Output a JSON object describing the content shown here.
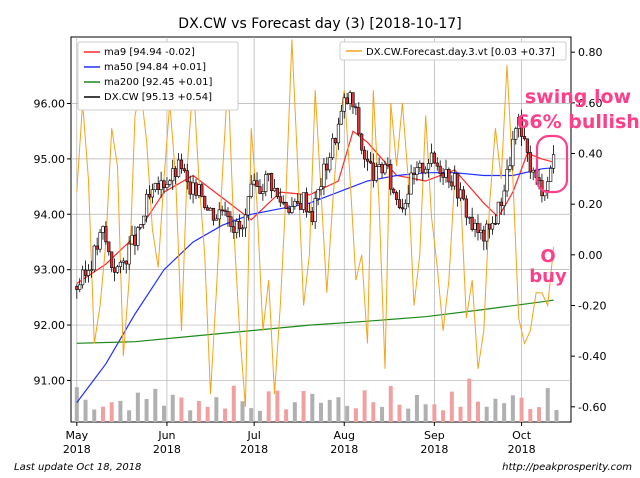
{
  "chart_data": {
    "type": "candlestick",
    "title": "DX.CW vs Forecast day (3)  [2018-10-17]",
    "footer_left": "Last update Oct 18, 2018",
    "footer_right": "http://peakprosperity.com",
    "grid": true,
    "y_left": {
      "range": [
        90.25,
        97.2
      ],
      "ticks": [
        91.0,
        92.0,
        93.0,
        94.0,
        95.0,
        96.0
      ],
      "tick_labels": [
        "91.00",
        "92.00",
        "93.00",
        "94.00",
        "95.00",
        "96.00"
      ]
    },
    "y_right": {
      "range": [
        -0.66,
        0.86
      ],
      "ticks": [
        -0.6,
        -0.4,
        -0.2,
        0.0,
        0.2,
        0.4,
        0.6,
        0.8
      ],
      "tick_labels": [
        "-0.60",
        "-0.40",
        "-0.20",
        "0.00",
        "0.20",
        "0.40",
        "0.60",
        "0.80"
      ]
    },
    "x_ticks": [
      {
        "month": "May",
        "year": "2018",
        "day": 0
      },
      {
        "month": "Jun",
        "year": "2018",
        "day": 31
      },
      {
        "month": "Jul",
        "year": "2018",
        "day": 61
      },
      {
        "month": "Aug",
        "year": "2018",
        "day": 92
      },
      {
        "month": "Sep",
        "year": "2018",
        "day": 123
      },
      {
        "month": "Oct",
        "year": "2018",
        "day": 153
      }
    ],
    "x_range": [
      -2,
      170
    ],
    "legend_left": {
      "position": "top-left",
      "entries": [
        {
          "label": "ma9 [94.94 -0.02]",
          "color": "#ff2a2a"
        },
        {
          "label": "ma50 [94.84 +0.01]",
          "color": "#2030ff"
        },
        {
          "label": "ma200 [92.45 +0.01]",
          "color": "#1a8a1a"
        },
        {
          "label": "DX.CW [95.13 +0.54]",
          "color": "#000000"
        }
      ]
    },
    "legend_right": {
      "position": "top-right",
      "entries": [
        {
          "label": "DX.CW.Forecast.day.3.vt [0.03 +0.37]",
          "color": "#f4a41c"
        }
      ]
    },
    "annotations": [
      {
        "text": "swing low",
        "color": "#ff3f8a"
      },
      {
        "text": "66% bullish",
        "color": "#ff3f8a"
      },
      {
        "text": "O",
        "color": "#ff3f8a"
      },
      {
        "text": "buy",
        "color": "#ff3f8a"
      }
    ],
    "colors": {
      "up": "#ffffff",
      "down": "#e63232",
      "wick": "#000000",
      "vol_up": "#b0b0b0",
      "vol_down": "#f0a0a0"
    },
    "series": [
      {
        "name": "DX.CW",
        "kind": "close",
        "days": [
          0,
          3,
          6,
          9,
          12,
          15,
          18,
          21,
          24,
          27,
          30,
          33,
          36,
          39,
          42,
          45,
          48,
          51,
          54,
          57,
          60,
          63,
          66,
          69,
          72,
          75,
          78,
          81,
          84,
          87,
          90,
          92,
          94,
          96,
          98,
          100,
          103,
          106,
          109,
          112,
          115,
          118,
          121,
          124,
          127,
          130,
          133,
          136,
          139,
          142,
          145,
          148,
          150,
          152,
          154,
          156,
          158,
          160,
          162,
          164
        ],
        "values": [
          92.7,
          92.9,
          93.3,
          93.7,
          93.1,
          93.0,
          93.4,
          93.6,
          94.2,
          94.4,
          94.6,
          94.7,
          94.9,
          94.3,
          94.6,
          94.1,
          94.0,
          94.2,
          93.8,
          93.7,
          94.4,
          94.5,
          94.7,
          94.3,
          94.2,
          94.1,
          94.3,
          94.0,
          94.6,
          95.1,
          95.6,
          96.0,
          96.1,
          95.8,
          95.2,
          94.9,
          94.7,
          94.9,
          94.4,
          94.2,
          94.6,
          94.8,
          95.0,
          94.9,
          94.8,
          94.6,
          94.2,
          93.8,
          93.6,
          93.7,
          94.1,
          94.7,
          95.3,
          95.6,
          95.2,
          94.9,
          94.6,
          94.5,
          94.6,
          95.13
        ]
      },
      {
        "name": "ma9",
        "days": [
          0,
          10,
          20,
          30,
          40,
          50,
          60,
          70,
          80,
          90,
          95,
          100,
          110,
          120,
          130,
          140,
          145,
          150,
          155,
          160,
          164
        ],
        "values": [
          92.75,
          93.1,
          93.6,
          94.4,
          94.7,
          94.3,
          93.9,
          94.4,
          94.35,
          94.6,
          95.5,
          95.3,
          94.7,
          94.6,
          94.8,
          94.2,
          93.95,
          94.4,
          95.1,
          95.0,
          94.94
        ]
      },
      {
        "name": "ma50",
        "days": [
          0,
          10,
          20,
          30,
          40,
          50,
          60,
          70,
          80,
          90,
          100,
          110,
          120,
          130,
          140,
          150,
          160,
          164
        ],
        "values": [
          90.6,
          91.3,
          92.2,
          93.0,
          93.5,
          93.8,
          94.0,
          94.1,
          94.2,
          94.4,
          94.6,
          94.7,
          94.75,
          94.75,
          94.7,
          94.7,
          94.82,
          94.84
        ]
      },
      {
        "name": "ma200",
        "days": [
          0,
          20,
          40,
          60,
          80,
          100,
          120,
          140,
          160,
          164
        ],
        "values": [
          91.67,
          91.7,
          91.8,
          91.9,
          92.0,
          92.07,
          92.15,
          92.28,
          92.42,
          92.45
        ]
      },
      {
        "name": "DX.CW.Forecast.day.3.vt",
        "axis": "right",
        "days": [
          0,
          2,
          4,
          6,
          8,
          10,
          12,
          14,
          16,
          18,
          20,
          22,
          24,
          26,
          28,
          30,
          32,
          34,
          36,
          38,
          40,
          42,
          44,
          46,
          48,
          50,
          52,
          54,
          56,
          58,
          60,
          62,
          64,
          66,
          68,
          70,
          72,
          74,
          76,
          78,
          80,
          82,
          84,
          86,
          88,
          90,
          92,
          94,
          96,
          98,
          100,
          102,
          104,
          106,
          108,
          110,
          112,
          114,
          116,
          118,
          120,
          122,
          124,
          126,
          128,
          130,
          132,
          134,
          136,
          138,
          140,
          142,
          144,
          146,
          148,
          150,
          152,
          154,
          156,
          158,
          160,
          162,
          164
        ],
        "values": [
          0.25,
          0.6,
          0.3,
          -0.35,
          -0.2,
          0.05,
          0.5,
          0.35,
          -0.4,
          -0.1,
          0.55,
          0.65,
          0.45,
          0.1,
          -0.05,
          0.3,
          0.6,
          0.3,
          -0.3,
          0.35,
          0.7,
          0.3,
          0.0,
          -0.55,
          -0.15,
          0.3,
          0.7,
          0.1,
          -0.3,
          -0.6,
          0.5,
          0.2,
          -0.3,
          -0.1,
          -0.55,
          -0.2,
          0.25,
          0.85,
          0.35,
          -0.2,
          0.0,
          0.65,
          0.25,
          -0.15,
          0.2,
          0.5,
          0.65,
          0.3,
          -0.1,
          0.0,
          -0.35,
          0.65,
          0.2,
          -0.45,
          0.6,
          0.35,
          0.6,
          0.3,
          -0.2,
          0.0,
          0.55,
          0.15,
          -0.05,
          -0.3,
          -0.1,
          0.3,
          0.25,
          -0.25,
          -0.1,
          -0.45,
          -0.3,
          0.2,
          0.5,
          0.3,
          0.75,
          0.3,
          -0.25,
          -0.35,
          -0.3,
          -0.15,
          -0.15,
          -0.2,
          0.03
        ]
      }
    ],
    "volume": {
      "days_step": 3,
      "count": 56
    }
  }
}
